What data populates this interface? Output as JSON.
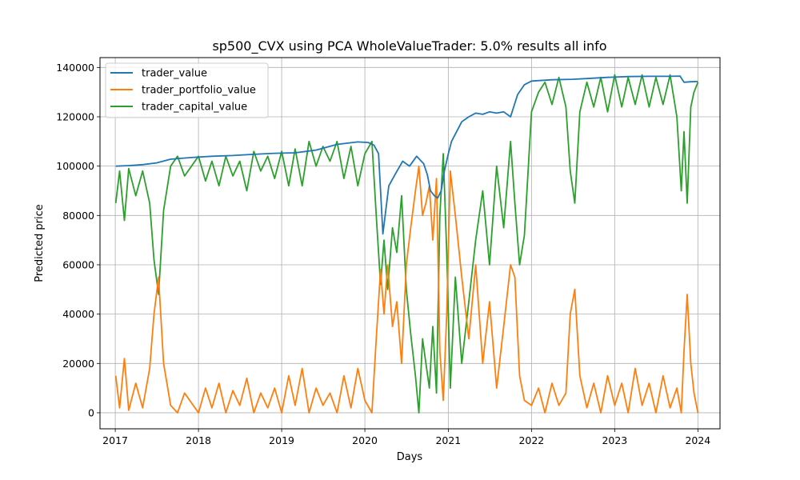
{
  "chart_data": {
    "type": "line",
    "title": "sp500_CVX using PCA WholeValueTrader: 5.0% results all info",
    "xlabel": "Days",
    "ylabel": "Predicted price",
    "xlim": [
      "2016-10-26",
      "2024-04-07"
    ],
    "ylim": [
      -6500,
      144000
    ],
    "x_ticks": [
      "2017",
      "2018",
      "2019",
      "2020",
      "2021",
      "2022",
      "2023",
      "2024"
    ],
    "y_ticks": [
      0,
      20000,
      40000,
      60000,
      80000,
      100000,
      120000,
      140000
    ],
    "y_tick_labels": [
      "0",
      "20000",
      "40000",
      "60000",
      "80000",
      "100000",
      "120000",
      "140000"
    ],
    "grid": true,
    "legend_position": "top-left",
    "series": [
      {
        "name": "trader_value",
        "color": "#1f77b4",
        "x": [
          "2017-01-03",
          "2017-03-01",
          "2017-05-01",
          "2017-07-01",
          "2017-09-01",
          "2017-12-01",
          "2018-03-01",
          "2018-06-01",
          "2018-09-01",
          "2018-12-01",
          "2019-03-01",
          "2019-06-01",
          "2019-09-01",
          "2019-12-01",
          "2020-01-15",
          "2020-02-10",
          "2020-03-01",
          "2020-03-20",
          "2020-04-15",
          "2020-05-15",
          "2020-06-15",
          "2020-07-15",
          "2020-08-15",
          "2020-09-15",
          "2020-10-01",
          "2020-10-15",
          "2020-11-01",
          "2020-11-15",
          "2020-12-01",
          "2020-12-15",
          "2021-01-01",
          "2021-01-15",
          "2021-02-01",
          "2021-03-01",
          "2021-04-01",
          "2021-05-01",
          "2021-06-01",
          "2021-07-01",
          "2021-08-01",
          "2021-09-01",
          "2021-10-01",
          "2021-11-01",
          "2021-12-01",
          "2022-01-01",
          "2022-04-01",
          "2022-07-01",
          "2022-09-01",
          "2022-12-01",
          "2023-03-01",
          "2023-06-01",
          "2023-09-01",
          "2023-10-15",
          "2023-11-01",
          "2023-12-01",
          "2024-01-01"
        ],
        "y": [
          100000,
          100200,
          100600,
          101300,
          102800,
          103500,
          104000,
          104300,
          104800,
          105200,
          105400,
          106500,
          108800,
          109800,
          109600,
          108500,
          105000,
          72500,
          92000,
          97000,
          102000,
          100000,
          104000,
          101000,
          96500,
          90000,
          88000,
          87000,
          90000,
          98000,
          105000,
          110000,
          113000,
          118000,
          120000,
          121500,
          121000,
          122000,
          121500,
          122000,
          120000,
          129000,
          133000,
          134500,
          135000,
          135200,
          135500,
          136000,
          136300,
          136400,
          136400,
          136500,
          134000,
          134200,
          134300
        ]
      },
      {
        "name": "trader_portfolio_value",
        "color": "#ff7f0e",
        "x": [
          "2017-01-03",
          "2017-01-20",
          "2017-02-10",
          "2017-03-01",
          "2017-04-01",
          "2017-05-01",
          "2017-06-01",
          "2017-06-20",
          "2017-07-10",
          "2017-08-01",
          "2017-09-01",
          "2017-10-01",
          "2017-11-01",
          "2018-01-01",
          "2018-02-01",
          "2018-03-01",
          "2018-04-01",
          "2018-05-01",
          "2018-06-01",
          "2018-07-01",
          "2018-08-01",
          "2018-09-01",
          "2018-10-01",
          "2018-11-01",
          "2018-12-01",
          "2019-01-01",
          "2019-02-01",
          "2019-03-01",
          "2019-04-01",
          "2019-05-01",
          "2019-06-01",
          "2019-07-01",
          "2019-08-01",
          "2019-09-01",
          "2019-10-01",
          "2019-11-01",
          "2019-12-01",
          "2020-01-01",
          "2020-02-01",
          "2020-02-20",
          "2020-03-10",
          "2020-03-25",
          "2020-04-10",
          "2020-05-01",
          "2020-05-20",
          "2020-06-10",
          "2020-07-01",
          "2020-07-20",
          "2020-08-10",
          "2020-08-25",
          "2020-09-10",
          "2020-09-25",
          "2020-10-10",
          "2020-10-25",
          "2020-11-10",
          "2020-11-25",
          "2020-12-10",
          "2020-12-25",
          "2021-01-10",
          "2021-02-01",
          "2021-03-01",
          "2021-04-01",
          "2021-05-01",
          "2021-06-01",
          "2021-07-01",
          "2021-08-01",
          "2021-09-01",
          "2021-10-01",
          "2021-10-20",
          "2021-11-10",
          "2021-12-01",
          "2022-01-01",
          "2022-02-01",
          "2022-03-01",
          "2022-04-01",
          "2022-05-01",
          "2022-06-01",
          "2022-06-20",
          "2022-07-10",
          "2022-08-01",
          "2022-09-01",
          "2022-10-01",
          "2022-11-01",
          "2022-12-01",
          "2023-01-01",
          "2023-02-01",
          "2023-03-01",
          "2023-04-01",
          "2023-05-01",
          "2023-06-01",
          "2023-07-01",
          "2023-08-01",
          "2023-09-01",
          "2023-10-01",
          "2023-10-20",
          "2023-11-01",
          "2023-11-15",
          "2023-12-01",
          "2023-12-15",
          "2024-01-01"
        ],
        "y": [
          15000,
          2000,
          22000,
          1000,
          12000,
          2000,
          18000,
          40000,
          55000,
          20000,
          3000,
          0,
          8000,
          0,
          10000,
          2000,
          12000,
          0,
          9000,
          3000,
          14000,
          0,
          8000,
          2000,
          10000,
          0,
          15000,
          3000,
          18000,
          0,
          10000,
          3000,
          8000,
          0,
          15000,
          2000,
          18000,
          5000,
          0,
          30000,
          58000,
          40000,
          60000,
          35000,
          45000,
          20000,
          60000,
          75000,
          90000,
          100000,
          80000,
          85000,
          92000,
          70000,
          95000,
          25000,
          5000,
          40000,
          98000,
          80000,
          55000,
          30000,
          60000,
          20000,
          45000,
          10000,
          35000,
          60000,
          55000,
          15000,
          5000,
          3000,
          10000,
          0,
          12000,
          3000,
          8000,
          40000,
          50000,
          15000,
          2000,
          12000,
          0,
          15000,
          3000,
          12000,
          0,
          18000,
          3000,
          12000,
          0,
          15000,
          2000,
          10000,
          0,
          25000,
          48000,
          20000,
          8000,
          0
        ]
      },
      {
        "name": "trader_capital_value",
        "color": "#2ca02c",
        "x": [
          "2017-01-03",
          "2017-01-20",
          "2017-02-10",
          "2017-03-01",
          "2017-04-01",
          "2017-05-01",
          "2017-06-01",
          "2017-06-20",
          "2017-07-10",
          "2017-08-01",
          "2017-09-01",
          "2017-10-01",
          "2017-11-01",
          "2018-01-01",
          "2018-02-01",
          "2018-03-01",
          "2018-04-01",
          "2018-05-01",
          "2018-06-01",
          "2018-07-01",
          "2018-08-01",
          "2018-09-01",
          "2018-10-01",
          "2018-11-01",
          "2018-12-01",
          "2019-01-01",
          "2019-02-01",
          "2019-03-01",
          "2019-04-01",
          "2019-05-01",
          "2019-06-01",
          "2019-07-01",
          "2019-08-01",
          "2019-09-01",
          "2019-10-01",
          "2019-11-01",
          "2019-12-01",
          "2020-01-01",
          "2020-02-01",
          "2020-02-20",
          "2020-03-10",
          "2020-03-25",
          "2020-04-10",
          "2020-05-01",
          "2020-05-20",
          "2020-06-10",
          "2020-07-01",
          "2020-07-20",
          "2020-08-10",
          "2020-08-25",
          "2020-09-10",
          "2020-09-25",
          "2020-10-10",
          "2020-10-25",
          "2020-11-10",
          "2020-11-25",
          "2020-12-10",
          "2020-12-25",
          "2021-01-10",
          "2021-02-01",
          "2021-03-01",
          "2021-04-01",
          "2021-05-01",
          "2021-06-01",
          "2021-07-01",
          "2021-08-01",
          "2021-09-01",
          "2021-10-01",
          "2021-10-20",
          "2021-11-10",
          "2021-12-01",
          "2022-01-01",
          "2022-02-01",
          "2022-03-01",
          "2022-04-01",
          "2022-05-01",
          "2022-06-01",
          "2022-06-20",
          "2022-07-10",
          "2022-08-01",
          "2022-09-01",
          "2022-10-01",
          "2022-11-01",
          "2022-12-01",
          "2023-01-01",
          "2023-02-01",
          "2023-03-01",
          "2023-04-01",
          "2023-05-01",
          "2023-06-01",
          "2023-07-01",
          "2023-08-01",
          "2023-09-01",
          "2023-10-01",
          "2023-10-20",
          "2023-11-01",
          "2023-11-15",
          "2023-12-01",
          "2023-12-15",
          "2024-01-01"
        ],
        "y": [
          85000,
          98000,
          78000,
          99000,
          88000,
          98000,
          85000,
          62000,
          48000,
          82000,
          100000,
          104000,
          96000,
          104000,
          94000,
          102000,
          92000,
          104000,
          96000,
          102000,
          90000,
          106000,
          98000,
          104000,
          95000,
          106000,
          92000,
          107000,
          92000,
          110000,
          100000,
          108000,
          102000,
          110000,
          95000,
          108000,
          92000,
          105000,
          110000,
          80000,
          52000,
          70000,
          50000,
          75000,
          65000,
          88000,
          50000,
          32000,
          15000,
          0,
          30000,
          20000,
          10000,
          35000,
          8000,
          80000,
          105000,
          65000,
          10000,
          55000,
          20000,
          45000,
          70000,
          90000,
          60000,
          100000,
          75000,
          110000,
          85000,
          60000,
          72000,
          122000,
          130000,
          134000,
          125000,
          136000,
          124000,
          98000,
          85000,
          122000,
          134000,
          124000,
          136000,
          122000,
          137000,
          124000,
          136000,
          125000,
          137000,
          124000,
          136000,
          125000,
          137000,
          120000,
          90000,
          114000,
          85000,
          124000,
          130000,
          134000
        ]
      }
    ]
  }
}
